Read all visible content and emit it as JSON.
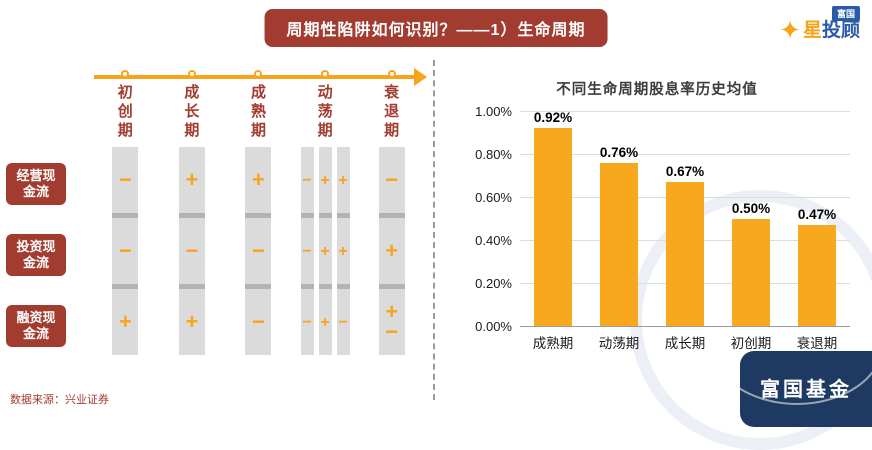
{
  "slide": {
    "title": "周期性陷阱如何识别？——1）生命周期",
    "source_note": "数据来源：兴业证券"
  },
  "icons": {
    "star": "✦"
  },
  "logo": {
    "badge": "富国",
    "brand_orange": "星",
    "brand_blue": "投顾",
    "watermark_text": "富国基金"
  },
  "colors": {
    "maroon": "#A23C30",
    "orange": "#F7A41C",
    "bar_orange": "#F7A81C",
    "navy": "#1E3A63",
    "logo_blue": "#2B5BA8",
    "bar_gray": "#DBDBDB"
  },
  "lifecycle": {
    "row_labels": [
      "经营现金流",
      "投资现金流",
      "融资现金流"
    ],
    "row_labels_lines": [
      [
        "经营现",
        "金流"
      ],
      [
        "投资现",
        "金流"
      ],
      [
        "融资现",
        "金流"
      ]
    ],
    "stages": [
      {
        "label": "初创期",
        "bars": [
          [
            [
              "−"
            ],
            [
              "−"
            ],
            [
              "+"
            ]
          ]
        ]
      },
      {
        "label": "成长期",
        "bars": [
          [
            [
              "+"
            ],
            [
              "−"
            ],
            [
              "+"
            ]
          ]
        ]
      },
      {
        "label": "成熟期",
        "bars": [
          [
            [
              "+"
            ],
            [
              "−"
            ],
            [
              "−"
            ]
          ]
        ]
      },
      {
        "label": "动荡期",
        "bars": [
          [
            [
              "−"
            ],
            [
              "−"
            ],
            [
              "−"
            ]
          ],
          [
            [
              "+"
            ],
            [
              "+"
            ],
            [
              "+"
            ]
          ],
          [
            [
              "+"
            ],
            [
              "+"
            ],
            [
              "−"
            ]
          ]
        ]
      },
      {
        "label": "衰退期",
        "bars": [
          [
            [
              "−"
            ],
            [
              "+"
            ],
            [
              "+",
              "−"
            ]
          ]
        ]
      }
    ]
  },
  "chart_data": {
    "type": "bar",
    "title": "不同生命周期股息率历史均值",
    "categories": [
      "成熟期",
      "动荡期",
      "成长期",
      "初创期",
      "衰退期"
    ],
    "values": [
      0.92,
      0.76,
      0.67,
      0.5,
      0.47
    ],
    "labels": [
      "0.92%",
      "0.76%",
      "0.67%",
      "0.50%",
      "0.47%"
    ],
    "y_ticks": [
      "1.00%",
      "0.80%",
      "0.60%",
      "0.40%",
      "0.20%",
      "0.00%"
    ],
    "ylim": [
      0,
      1.0
    ],
    "xlabel": "",
    "ylabel": "",
    "grid": true,
    "legend": false
  }
}
